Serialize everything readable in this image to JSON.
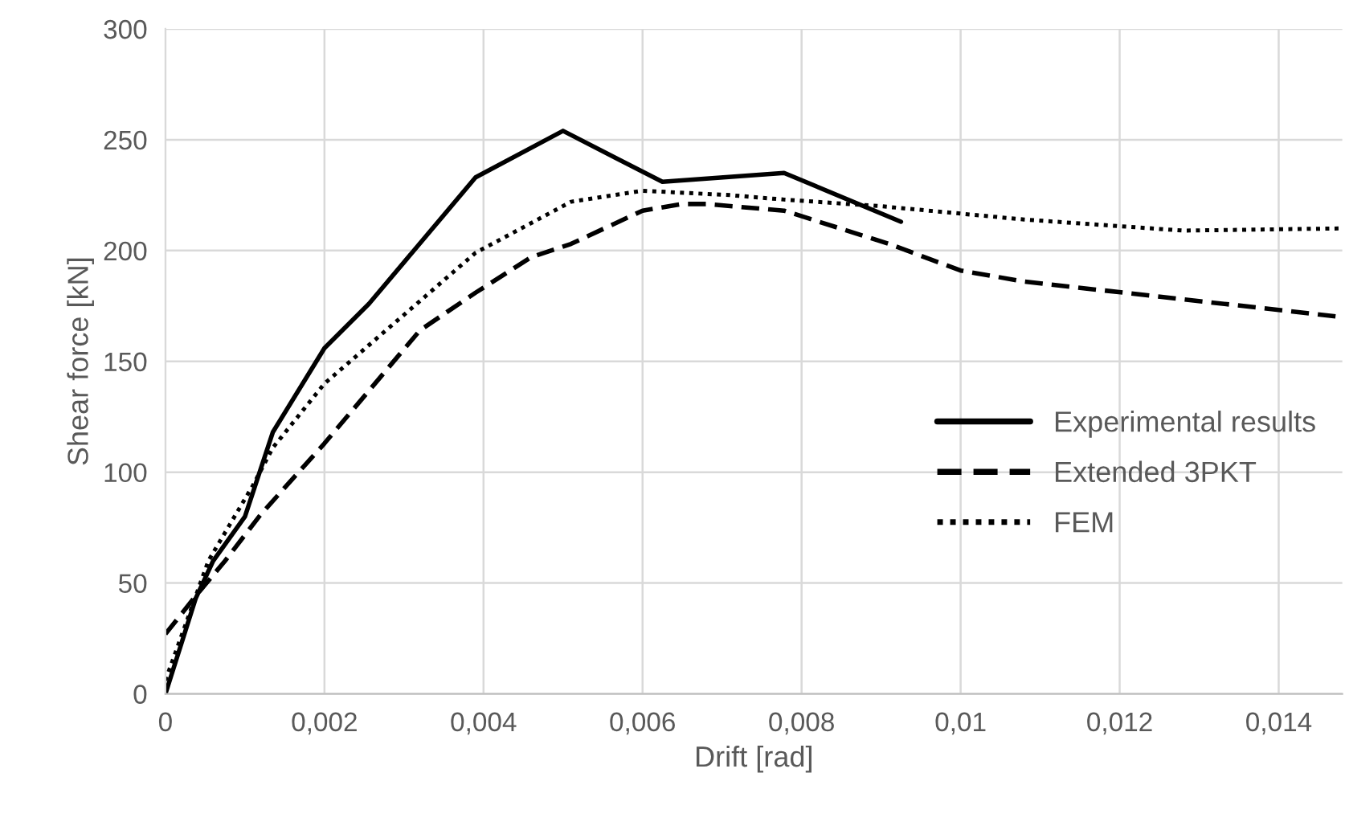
{
  "chart_data": {
    "type": "line",
    "xlabel": "Drift [rad]",
    "ylabel": "Shear force [kN]",
    "xlim": [
      0,
      0.0148
    ],
    "ylim": [
      0,
      300
    ],
    "xticks": [
      {
        "value": 0,
        "label": "0"
      },
      {
        "value": 0.002,
        "label": "0,002"
      },
      {
        "value": 0.004,
        "label": "0,004"
      },
      {
        "value": 0.006,
        "label": "0,006"
      },
      {
        "value": 0.008,
        "label": "0,008"
      },
      {
        "value": 0.01,
        "label": "0,01"
      },
      {
        "value": 0.012,
        "label": "0,012"
      },
      {
        "value": 0.014,
        "label": "0,014"
      }
    ],
    "yticks": [
      0,
      50,
      100,
      150,
      200,
      250,
      300
    ],
    "grid": true,
    "legend": "right",
    "marker": "none",
    "series": [
      {
        "name": "Experimental results",
        "color": "#000000",
        "line_style": "solid",
        "x": [
          0,
          0.00038,
          0.0006,
          0.001,
          0.00135,
          0.002,
          0.00256,
          0.0039,
          0.005,
          0.00625,
          0.00778,
          0.00925
        ],
        "values": [
          0,
          43,
          60,
          80,
          118,
          156,
          176,
          233,
          254,
          231,
          235,
          213
        ]
      },
      {
        "name": "Extended 3PKT",
        "color": "#000000",
        "line_style": "dashed",
        "x": [
          0,
          0.0004,
          0.00075,
          0.0012,
          0.002,
          0.0032,
          0.0039,
          0.0046,
          0.0051,
          0.006,
          0.0065,
          0.0068,
          0.00778,
          0.0091,
          0.01,
          0.0108,
          0.0128,
          0.0148
        ],
        "values": [
          27,
          45,
          60,
          81,
          113,
          164,
          181,
          197,
          203,
          218,
          221,
          221,
          218,
          203,
          191,
          186,
          178,
          170
        ]
      },
      {
        "name": "FEM",
        "color": "#000000",
        "line_style": "dotted",
        "x": [
          0,
          0.00054,
          0.0011,
          0.00135,
          0.002,
          0.003,
          0.0039,
          0.0051,
          0.006,
          0.0071,
          0.00778,
          0.009,
          0.0108,
          0.0128,
          0.0148
        ],
        "values": [
          6,
          60,
          94,
          111,
          140,
          171,
          199,
          222,
          227,
          225,
          223,
          220,
          214,
          209,
          210
        ]
      }
    ]
  }
}
